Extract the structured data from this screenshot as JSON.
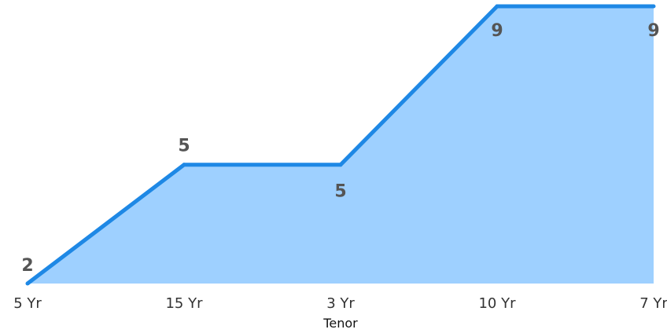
{
  "chart_data": {
    "type": "area",
    "categories": [
      "5 Yr",
      "15 Yr",
      "3 Yr",
      "10 Yr",
      "7 Yr"
    ],
    "values": [
      2,
      5,
      5,
      9,
      9
    ],
    "data_labels": [
      "2",
      "5",
      "5",
      "9",
      "9"
    ],
    "xlabel": "Tenor",
    "ylim": [
      2,
      9
    ],
    "grid": false,
    "legend": "none",
    "colors": {
      "line": "#1E88E5",
      "fill": "#9ED0FF",
      "tick_text": "#333333",
      "data_label_text": "#555555"
    }
  }
}
